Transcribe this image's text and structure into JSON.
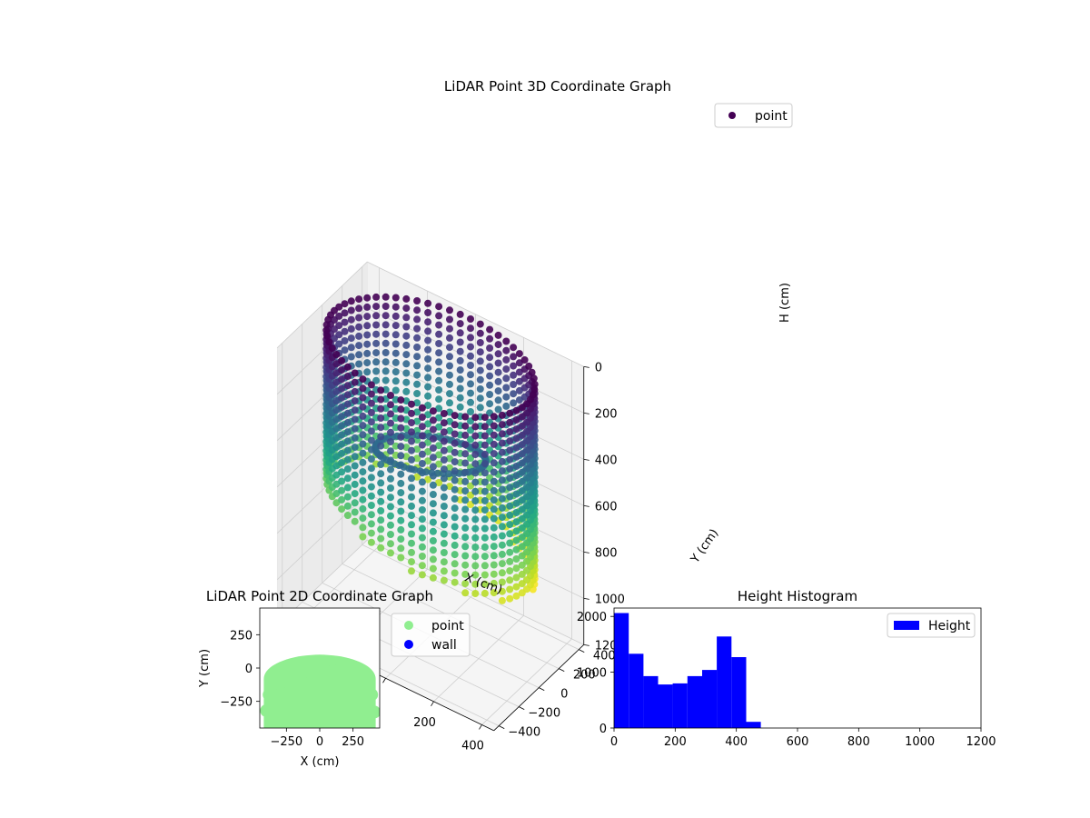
{
  "chart_data": [
    {
      "type": "scatter",
      "projection": "3d",
      "title": "LiDAR Point 3D Coordinate Graph",
      "xlabel": "X (cm)",
      "ylabel": "Y (cm)",
      "zlabel": "H (cm)",
      "xticks": [
        "−400",
        "−200",
        "0",
        "200",
        "400"
      ],
      "yticks": [
        "−400",
        "−200",
        "0",
        "200",
        "400"
      ],
      "zticks": [
        "0",
        "200",
        "400",
        "600",
        "800",
        "1000",
        "1200"
      ],
      "xlim": [
        -450,
        450
      ],
      "ylim": [
        -450,
        450
      ],
      "zlim": [
        0,
        1200
      ],
      "z_inverted": true,
      "colormap": "viridis",
      "legend": {
        "placement": "top-right",
        "entries": [
          {
            "label": "point",
            "color": "#440154"
          }
        ]
      },
      "grid": true,
      "series": [
        {
          "name": "point",
          "shape": "ring of vertical point columns",
          "ring_radius_cm": 400,
          "h_range_cm": [
            0,
            850
          ]
        }
      ]
    },
    {
      "type": "scatter",
      "title": "LiDAR Point 2D Coordinate Graph",
      "xlabel": "X (cm)",
      "ylabel": "Y (cm)",
      "xticks": [
        "−250",
        "0",
        "250"
      ],
      "yticks": [
        "250",
        "0",
        "−250"
      ],
      "xlim": [
        -450,
        450
      ],
      "ylim": [
        -450,
        450
      ],
      "legend": {
        "placement": "right",
        "entries": [
          {
            "label": "point",
            "color": "#90ee90"
          },
          {
            "label": "wall",
            "color": "#0000ff"
          }
        ]
      },
      "series": [
        {
          "name": "point",
          "color": "#90ee90",
          "region": "upper half-disc, radius 420 cm, clipped at Y = −450"
        },
        {
          "name": "wall",
          "color": "#0000ff",
          "points": []
        }
      ]
    },
    {
      "type": "bar",
      "subtype": "histogram",
      "title": "Height Histogram",
      "xlim": [
        0,
        1200
      ],
      "ylim": [
        0,
        2150
      ],
      "xticks": [
        "0",
        "200",
        "400",
        "600",
        "800",
        "1000",
        "1200"
      ],
      "yticks": [
        "0",
        "1000",
        "2000"
      ],
      "bin_width": 48,
      "bin_edges": [
        0,
        48,
        96,
        144,
        192,
        240,
        288,
        336,
        384,
        432,
        480
      ],
      "values": [
        2060,
        1330,
        930,
        780,
        800,
        930,
        1040,
        1640,
        1270,
        110
      ],
      "color": "#0000ff",
      "legend": {
        "placement": "top-right",
        "entries": [
          {
            "label": "Height",
            "color": "#0000ff"
          }
        ]
      }
    }
  ]
}
